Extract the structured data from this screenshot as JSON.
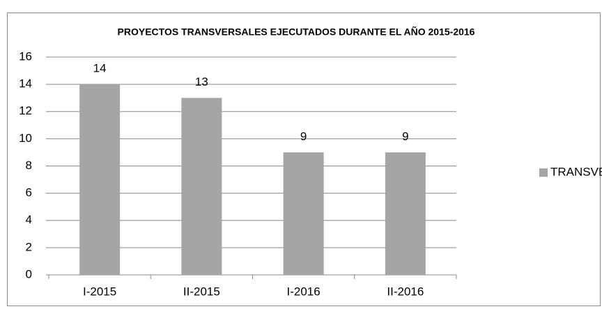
{
  "chart_data": {
    "type": "bar",
    "title": "PROYECTOS TRANSVERSALES EJECUTADOS DURANTE EL AÑO 2015-2016",
    "categories": [
      "I-2015",
      "II-2015",
      "I-2016",
      "II-2016"
    ],
    "series": [
      {
        "name": "TRANSVERSAL",
        "color": "#a5a5a5",
        "values": [
          14,
          13,
          9,
          9
        ]
      }
    ],
    "ylim": [
      0,
      16
    ],
    "yticks": [
      0,
      2,
      4,
      6,
      8,
      10,
      12,
      14,
      16
    ],
    "grid": true,
    "legend": "right"
  }
}
